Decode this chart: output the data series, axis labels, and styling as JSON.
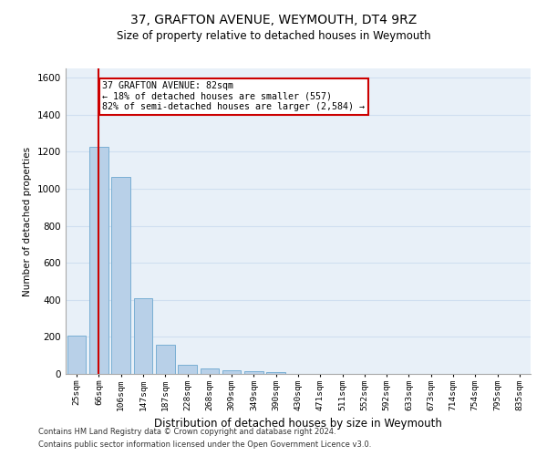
{
  "title1": "37, GRAFTON AVENUE, WEYMOUTH, DT4 9RZ",
  "title2": "Size of property relative to detached houses in Weymouth",
  "xlabel": "Distribution of detached houses by size in Weymouth",
  "ylabel": "Number of detached properties",
  "categories": [
    "25sqm",
    "66sqm",
    "106sqm",
    "147sqm",
    "187sqm",
    "228sqm",
    "268sqm",
    "309sqm",
    "349sqm",
    "390sqm",
    "430sqm",
    "471sqm",
    "511sqm",
    "552sqm",
    "592sqm",
    "633sqm",
    "673sqm",
    "714sqm",
    "754sqm",
    "795sqm",
    "835sqm"
  ],
  "values": [
    205,
    1225,
    1065,
    410,
    160,
    48,
    28,
    18,
    13,
    10,
    0,
    0,
    0,
    0,
    0,
    0,
    0,
    0,
    0,
    0,
    0
  ],
  "bar_color": "#b8d0e8",
  "bar_edge_color": "#7aafd4",
  "grid_color": "#d0dff0",
  "background_color": "#e8f0f8",
  "vline_x": 1.0,
  "vline_color": "#cc0000",
  "annotation_text": "37 GRAFTON AVENUE: 82sqm\n← 18% of detached houses are smaller (557)\n82% of semi-detached houses are larger (2,584) →",
  "annotation_box_color": "#cc0000",
  "ylim": [
    0,
    1650
  ],
  "yticks": [
    0,
    200,
    400,
    600,
    800,
    1000,
    1200,
    1400,
    1600
  ],
  "footnote1": "Contains HM Land Registry data © Crown copyright and database right 2024.",
  "footnote2": "Contains public sector information licensed under the Open Government Licence v3.0."
}
